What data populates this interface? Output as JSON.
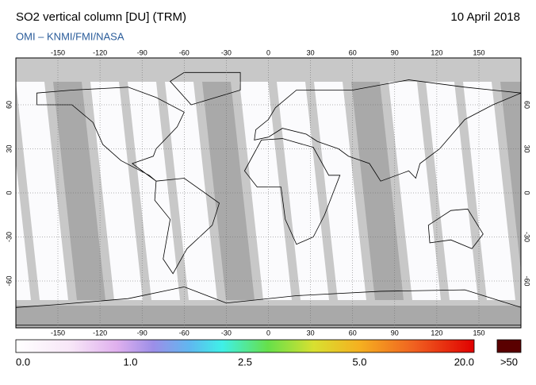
{
  "title": "SO2 vertical column [DU] (TRM)",
  "date": "10 April 2018",
  "subtitle": "OMI  –  KNMI/FMI/NASA",
  "map": {
    "lon_ticks": [
      -150,
      -120,
      -90,
      -60,
      -30,
      0,
      30,
      60,
      90,
      120,
      150
    ],
    "lat_ticks": [
      60,
      30,
      0,
      -30,
      -60
    ]
  },
  "colorbar": {
    "labels": [
      "0.0",
      "1.0",
      "2.5",
      "5.0",
      "20.0"
    ],
    "overflow_label": ">50"
  }
}
